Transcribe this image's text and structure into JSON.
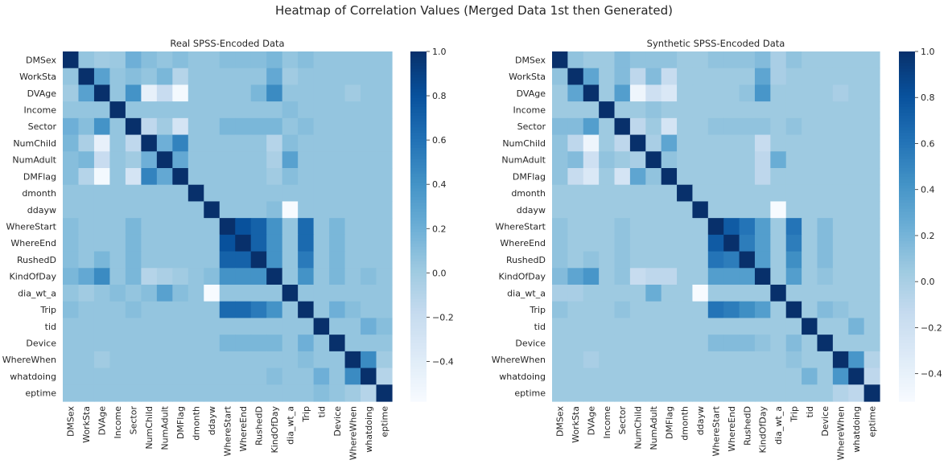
{
  "suptitle": "Heatmap of Correlation Values (Merged Data 1st then Generated)",
  "labels": [
    "DMSex",
    "WorkSta",
    "DVAge",
    "Income",
    "Sector",
    "NumChild",
    "NumAdult",
    "DMFlag",
    "dmonth",
    "ddayw",
    "WhereStart",
    "WhereEnd",
    "RushedD",
    "KindOfDay",
    "dia_wt_a",
    "Trip",
    "tid",
    "Device",
    "WhereWhen",
    "whatdoing",
    "eptime"
  ],
  "colormap": "Blues",
  "chart_data": [
    {
      "type": "heatmap",
      "title": "Real SPSS-Encoded Data",
      "vmin": -0.58,
      "vmax": 1.0,
      "colorbar_ticks": [
        1.0,
        0.8,
        0.6,
        0.4,
        0.2,
        0.0,
        -0.2,
        -0.4
      ],
      "colorbar_tick_labels": [
        "1.0",
        "0.8",
        "0.6",
        "0.4",
        "0.2",
        "0.0",
        "−0.2",
        "−0.4"
      ],
      "values": [
        [
          1.0,
          0.05,
          0.0,
          0.02,
          0.2,
          0.1,
          0.05,
          0.1,
          0.05,
          0.05,
          0.1,
          0.1,
          0.1,
          0.15,
          0.05,
          0.1,
          0.05,
          0.05,
          0.05,
          0.05,
          0.05
        ],
        [
          0.05,
          1.0,
          0.3,
          0.05,
          0.1,
          0.05,
          0.15,
          -0.1,
          0.05,
          0.05,
          0.05,
          0.05,
          0.05,
          0.25,
          0.0,
          0.05,
          0.05,
          0.05,
          0.05,
          0.05,
          0.05
        ],
        [
          0.0,
          0.3,
          1.0,
          0.05,
          0.4,
          -0.45,
          -0.2,
          -0.55,
          0.05,
          0.05,
          0.05,
          0.05,
          0.15,
          0.45,
          0.05,
          0.05,
          0.05,
          0.05,
          0.0,
          0.05,
          0.05
        ],
        [
          0.05,
          0.05,
          0.05,
          1.0,
          0.05,
          0.05,
          0.05,
          0.05,
          0.05,
          0.05,
          0.05,
          0.05,
          0.05,
          0.05,
          0.1,
          0.05,
          0.05,
          0.05,
          0.05,
          0.05,
          0.05
        ],
        [
          0.2,
          0.1,
          0.4,
          0.05,
          1.0,
          -0.15,
          0.0,
          -0.3,
          0.05,
          0.05,
          0.15,
          0.15,
          0.15,
          0.15,
          0.05,
          0.1,
          0.05,
          0.05,
          0.05,
          0.05,
          0.05
        ],
        [
          0.15,
          -0.05,
          -0.45,
          0.05,
          -0.15,
          1.0,
          0.2,
          0.5,
          0.05,
          0.05,
          0.05,
          0.05,
          0.05,
          -0.1,
          0.1,
          0.05,
          0.05,
          0.05,
          0.05,
          0.05,
          0.05
        ],
        [
          0.1,
          0.15,
          -0.2,
          0.05,
          0.0,
          0.2,
          1.0,
          0.25,
          0.05,
          0.05,
          0.05,
          0.05,
          0.05,
          -0.05,
          0.3,
          0.05,
          0.05,
          0.05,
          0.05,
          0.05,
          0.05
        ],
        [
          0.1,
          -0.1,
          -0.55,
          0.05,
          -0.3,
          0.5,
          0.25,
          1.0,
          0.05,
          0.05,
          0.05,
          0.05,
          0.05,
          0.0,
          0.1,
          0.05,
          0.05,
          0.05,
          0.05,
          0.05,
          0.05
        ],
        [
          0.05,
          0.05,
          0.05,
          0.05,
          0.05,
          0.05,
          0.05,
          0.05,
          1.0,
          0.05,
          0.05,
          0.05,
          0.05,
          0.05,
          0.05,
          0.05,
          0.05,
          0.05,
          0.05,
          0.05,
          0.05
        ],
        [
          0.05,
          0.05,
          0.05,
          0.05,
          0.05,
          0.05,
          0.05,
          0.05,
          0.05,
          1.0,
          0.05,
          0.05,
          0.05,
          0.1,
          -0.58,
          0.05,
          0.05,
          0.05,
          0.05,
          0.05,
          0.05
        ],
        [
          0.1,
          0.05,
          0.05,
          0.05,
          0.15,
          0.05,
          0.05,
          0.05,
          0.05,
          0.05,
          1.0,
          0.8,
          0.7,
          0.4,
          0.05,
          0.65,
          0.05,
          0.15,
          0.05,
          0.05,
          0.05
        ],
        [
          0.1,
          0.05,
          0.05,
          0.05,
          0.15,
          0.05,
          0.05,
          0.05,
          0.05,
          0.05,
          0.8,
          1.0,
          0.7,
          0.4,
          0.05,
          0.65,
          0.05,
          0.15,
          0.05,
          0.05,
          0.05
        ],
        [
          0.1,
          0.05,
          0.15,
          0.05,
          0.15,
          0.05,
          0.05,
          0.05,
          0.05,
          0.05,
          0.7,
          0.7,
          1.0,
          0.4,
          0.05,
          0.55,
          0.05,
          0.15,
          0.05,
          0.05,
          0.05
        ],
        [
          0.15,
          0.25,
          0.45,
          0.05,
          0.15,
          -0.1,
          -0.05,
          0.0,
          0.05,
          0.1,
          0.4,
          0.4,
          0.4,
          1.0,
          0.05,
          0.4,
          0.05,
          0.15,
          0.05,
          0.1,
          0.05
        ],
        [
          0.05,
          0.0,
          0.05,
          0.1,
          0.05,
          0.1,
          0.3,
          0.1,
          0.05,
          -0.58,
          0.05,
          0.05,
          0.05,
          0.05,
          1.0,
          0.05,
          0.05,
          0.05,
          0.05,
          0.05,
          0.05
        ],
        [
          0.1,
          0.05,
          0.05,
          0.05,
          0.1,
          0.05,
          0.05,
          0.05,
          0.05,
          0.05,
          0.65,
          0.65,
          0.55,
          0.4,
          0.05,
          1.0,
          0.05,
          0.2,
          0.1,
          0.05,
          0.05
        ],
        [
          0.05,
          0.05,
          0.05,
          0.05,
          0.05,
          0.05,
          0.05,
          0.05,
          0.05,
          0.05,
          0.05,
          0.05,
          0.05,
          0.05,
          0.05,
          0.05,
          1.0,
          0.05,
          0.05,
          0.2,
          0.1
        ],
        [
          0.05,
          0.05,
          0.05,
          0.05,
          0.05,
          0.05,
          0.05,
          0.05,
          0.05,
          0.05,
          0.15,
          0.15,
          0.15,
          0.15,
          0.05,
          0.2,
          0.05,
          1.0,
          0.05,
          0.05,
          0.05
        ],
        [
          0.05,
          0.05,
          0.0,
          0.05,
          0.05,
          0.05,
          0.05,
          0.05,
          0.05,
          0.05,
          0.05,
          0.05,
          0.05,
          0.05,
          0.05,
          0.1,
          0.05,
          0.05,
          1.0,
          0.45,
          0.0
        ],
        [
          0.05,
          0.05,
          0.05,
          0.05,
          0.05,
          0.05,
          0.05,
          0.05,
          0.05,
          0.05,
          0.05,
          0.05,
          0.05,
          0.1,
          0.05,
          0.05,
          0.2,
          0.05,
          0.45,
          1.0,
          -0.1
        ],
        [
          0.05,
          0.05,
          0.05,
          0.05,
          0.05,
          0.05,
          0.05,
          0.05,
          0.05,
          0.05,
          0.05,
          0.05,
          0.05,
          0.05,
          0.05,
          0.05,
          0.1,
          0.05,
          0.0,
          -0.1,
          1.0
        ]
      ]
    },
    {
      "type": "heatmap",
      "title": "Synthetic SPSS-Encoded Data",
      "vmin": -0.52,
      "vmax": 1.0,
      "colorbar_ticks": [
        1.0,
        0.8,
        0.6,
        0.4,
        0.2,
        0.0,
        -0.2,
        -0.4
      ],
      "colorbar_tick_labels": [
        "1.0",
        "0.8",
        "0.6",
        "0.4",
        "0.2",
        "0.0",
        "−0.2",
        "−0.4"
      ],
      "values": [
        [
          1.0,
          0.1,
          0.05,
          0.05,
          0.15,
          0.1,
          0.1,
          0.1,
          0.05,
          0.05,
          0.1,
          0.1,
          0.1,
          0.15,
          0.0,
          0.1,
          0.05,
          0.05,
          0.05,
          0.05,
          0.05
        ],
        [
          0.1,
          1.0,
          0.3,
          0.05,
          0.15,
          -0.1,
          0.15,
          -0.15,
          0.05,
          0.05,
          0.05,
          0.05,
          0.05,
          0.3,
          0.0,
          0.05,
          0.05,
          0.05,
          0.05,
          0.05,
          0.05
        ],
        [
          0.05,
          0.3,
          1.0,
          0.05,
          0.35,
          -0.45,
          -0.2,
          -0.3,
          0.05,
          0.05,
          0.05,
          0.05,
          0.1,
          0.4,
          0.05,
          0.05,
          0.05,
          0.05,
          0.0,
          0.05,
          0.05
        ],
        [
          0.05,
          0.05,
          0.05,
          1.0,
          0.05,
          0.05,
          0.1,
          0.05,
          0.05,
          0.05,
          0.05,
          0.05,
          0.05,
          0.05,
          0.05,
          0.05,
          0.05,
          0.05,
          0.05,
          0.05,
          0.05
        ],
        [
          0.15,
          0.15,
          0.35,
          0.05,
          1.0,
          -0.1,
          0.05,
          -0.25,
          0.05,
          0.05,
          0.1,
          0.1,
          0.1,
          0.1,
          0.05,
          0.1,
          0.05,
          0.05,
          0.05,
          0.05,
          0.05
        ],
        [
          0.1,
          -0.1,
          -0.45,
          0.05,
          -0.1,
          1.0,
          0.0,
          0.3,
          0.05,
          0.05,
          0.05,
          0.05,
          0.05,
          -0.15,
          0.05,
          0.05,
          0.05,
          0.05,
          0.05,
          0.05,
          0.05
        ],
        [
          0.1,
          0.15,
          -0.2,
          0.1,
          0.05,
          0.0,
          1.0,
          0.1,
          0.05,
          0.05,
          0.05,
          0.05,
          0.05,
          -0.1,
          0.25,
          0.05,
          0.05,
          0.05,
          0.05,
          0.05,
          0.05
        ],
        [
          0.1,
          -0.15,
          -0.3,
          0.05,
          -0.25,
          0.3,
          0.1,
          1.0,
          0.05,
          0.05,
          0.05,
          0.05,
          0.05,
          -0.1,
          0.05,
          0.05,
          0.05,
          0.05,
          0.05,
          0.05,
          0.05
        ],
        [
          0.05,
          0.05,
          0.05,
          0.05,
          0.05,
          0.05,
          0.05,
          0.05,
          1.0,
          0.05,
          0.05,
          0.05,
          0.05,
          0.05,
          0.05,
          0.05,
          0.05,
          0.05,
          0.05,
          0.05,
          0.05
        ],
        [
          0.05,
          0.05,
          0.05,
          0.05,
          0.05,
          0.05,
          0.05,
          0.05,
          0.05,
          1.0,
          0.05,
          0.05,
          0.05,
          0.05,
          -0.52,
          0.05,
          0.05,
          0.05,
          0.05,
          0.05,
          0.05
        ],
        [
          0.1,
          0.05,
          0.05,
          0.05,
          0.1,
          0.05,
          0.05,
          0.05,
          0.05,
          0.05,
          1.0,
          0.75,
          0.6,
          0.35,
          0.05,
          0.6,
          0.05,
          0.15,
          0.05,
          0.05,
          0.05
        ],
        [
          0.1,
          0.05,
          0.05,
          0.05,
          0.1,
          0.05,
          0.05,
          0.05,
          0.05,
          0.05,
          0.75,
          1.0,
          0.55,
          0.35,
          0.05,
          0.55,
          0.05,
          0.15,
          0.05,
          0.05,
          0.05
        ],
        [
          0.1,
          0.05,
          0.1,
          0.05,
          0.1,
          0.05,
          0.05,
          0.05,
          0.05,
          0.05,
          0.6,
          0.55,
          1.0,
          0.35,
          0.05,
          0.45,
          0.05,
          0.15,
          0.05,
          0.05,
          0.05
        ],
        [
          0.15,
          0.3,
          0.4,
          0.05,
          0.1,
          -0.15,
          -0.1,
          -0.1,
          0.05,
          0.05,
          0.35,
          0.35,
          0.35,
          1.0,
          0.05,
          0.35,
          0.05,
          0.1,
          0.05,
          0.05,
          0.05
        ],
        [
          0.0,
          0.0,
          0.05,
          0.05,
          0.05,
          0.05,
          0.25,
          0.05,
          0.05,
          -0.52,
          0.05,
          0.05,
          0.05,
          0.05,
          1.0,
          0.05,
          0.05,
          0.05,
          0.05,
          0.05,
          0.05
        ],
        [
          0.1,
          0.05,
          0.05,
          0.05,
          0.1,
          0.05,
          0.05,
          0.05,
          0.05,
          0.05,
          0.6,
          0.55,
          0.45,
          0.35,
          0.05,
          1.0,
          0.05,
          0.15,
          0.1,
          0.05,
          0.05
        ],
        [
          0.05,
          0.05,
          0.05,
          0.05,
          0.05,
          0.05,
          0.05,
          0.05,
          0.05,
          0.05,
          0.05,
          0.05,
          0.05,
          0.05,
          0.05,
          0.05,
          1.0,
          0.05,
          0.05,
          0.2,
          0.05
        ],
        [
          0.05,
          0.05,
          0.05,
          0.05,
          0.05,
          0.05,
          0.05,
          0.05,
          0.05,
          0.05,
          0.15,
          0.15,
          0.15,
          0.1,
          0.05,
          0.15,
          0.05,
          1.0,
          0.05,
          0.05,
          0.05
        ],
        [
          0.05,
          0.05,
          0.0,
          0.05,
          0.05,
          0.05,
          0.05,
          0.05,
          0.05,
          0.05,
          0.05,
          0.05,
          0.05,
          0.05,
          0.05,
          0.1,
          0.05,
          0.05,
          1.0,
          0.4,
          -0.05
        ],
        [
          0.05,
          0.05,
          0.05,
          0.05,
          0.05,
          0.05,
          0.05,
          0.05,
          0.05,
          0.05,
          0.05,
          0.05,
          0.05,
          0.05,
          0.05,
          0.05,
          0.2,
          0.05,
          0.4,
          1.0,
          -0.1
        ],
        [
          0.05,
          0.05,
          0.05,
          0.05,
          0.05,
          0.05,
          0.05,
          0.05,
          0.05,
          0.05,
          0.05,
          0.05,
          0.05,
          0.05,
          0.05,
          0.05,
          0.05,
          0.05,
          -0.05,
          -0.1,
          1.0
        ]
      ]
    }
  ]
}
